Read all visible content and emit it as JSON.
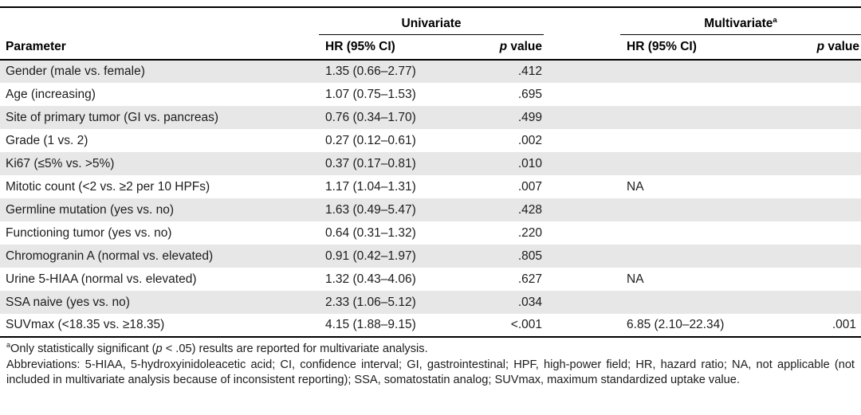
{
  "table": {
    "groups": {
      "univariate": "Univariate",
      "multivariate": "Multivariate",
      "multivariate_sup": "a"
    },
    "headers": {
      "parameter": "Parameter",
      "hr_ci": "HR (95% CI)",
      "p_italic": "p",
      "p_rest": " value"
    },
    "rows": [
      {
        "parameter": "Gender (male vs. female)",
        "uni_hr": "1.35 (0.66–2.77)",
        "uni_p": ".412",
        "multi_hr": "",
        "multi_p": ""
      },
      {
        "parameter": "Age (increasing)",
        "uni_hr": "1.07 (0.75–1.53)",
        "uni_p": ".695",
        "multi_hr": "",
        "multi_p": ""
      },
      {
        "parameter": "Site of primary tumor (GI vs. pancreas)",
        "uni_hr": "0.76 (0.34–1.70)",
        "uni_p": ".499",
        "multi_hr": "",
        "multi_p": ""
      },
      {
        "parameter": "Grade (1 vs. 2)",
        "uni_hr": "0.27 (0.12–0.61)",
        "uni_p": ".002",
        "multi_hr": "",
        "multi_p": ""
      },
      {
        "parameter": "Ki67 (≤5% vs. >5%)",
        "uni_hr": "0.37 (0.17–0.81)",
        "uni_p": ".010",
        "multi_hr": "",
        "multi_p": ""
      },
      {
        "parameter": "Mitotic count (<2 vs. ≥2 per 10 HPFs)",
        "uni_hr": "1.17 (1.04–1.31)",
        "uni_p": ".007",
        "multi_hr": "NA",
        "multi_p": ""
      },
      {
        "parameter": "Germline mutation (yes vs. no)",
        "uni_hr": "1.63 (0.49–5.47)",
        "uni_p": ".428",
        "multi_hr": "",
        "multi_p": ""
      },
      {
        "parameter": "Functioning tumor (yes vs. no)",
        "uni_hr": "0.64 (0.31–1.32)",
        "uni_p": ".220",
        "multi_hr": "",
        "multi_p": ""
      },
      {
        "parameter": "Chromogranin A (normal vs. elevated)",
        "uni_hr": "0.91 (0.42–1.97)",
        "uni_p": ".805",
        "multi_hr": "",
        "multi_p": ""
      },
      {
        "parameter": "Urine 5-HIAA (normal vs. elevated)",
        "uni_hr": "1.32 (0.43–4.06)",
        "uni_p": ".627",
        "multi_hr": "NA",
        "multi_p": ""
      },
      {
        "parameter": "SSA naive (yes vs. no)",
        "uni_hr": "2.33 (1.06–5.12)",
        "uni_p": ".034",
        "multi_hr": "",
        "multi_p": ""
      },
      {
        "parameter": "SUVmax (<18.35 vs. ≥18.35)",
        "uni_hr": "4.15 (1.88–9.15)",
        "uni_p": "<.001",
        "multi_hr": "6.85 (2.10–22.34)",
        "multi_p": ".001"
      }
    ]
  },
  "footnotes": {
    "a_sup": "a",
    "a_part1": "Only statistically significant (",
    "a_italic": "p",
    "a_part2": " < .05) results are reported for multivariate analysis.",
    "abbreviations": "Abbreviations: 5-HIAA, 5-hydroxyinidoleacetic acid; CI, confidence interval; GI, gastrointestinal; HPF, high-power field; HR, hazard ratio; NA, not applicable (not included in multivariate analysis because of inconsistent reporting); SSA, somatostatin analog; SUVmax, maximum standardized uptake value."
  },
  "colors": {
    "row_shade": "#e7e7e7",
    "text": "#1c1c1c",
    "border": "#000000"
  }
}
